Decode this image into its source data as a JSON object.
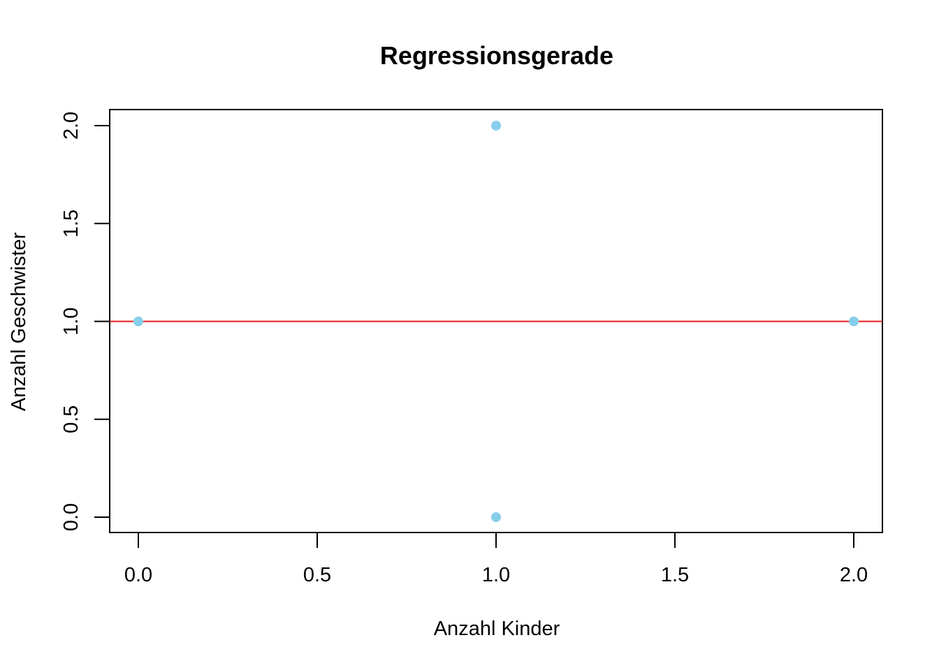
{
  "chart_data": {
    "type": "scatter",
    "title": "Regressionsgerade",
    "xlabel": "Anzahl Kinder",
    "ylabel": "Anzahl Geschwister",
    "xlim": [
      0,
      2
    ],
    "ylim": [
      0,
      2
    ],
    "x_ticks": [
      "0.0",
      "0.5",
      "1.0",
      "1.5",
      "2.0"
    ],
    "y_ticks": [
      "0.0",
      "0.5",
      "1.0",
      "1.5",
      "2.0"
    ],
    "series": [
      {
        "points": [
          {
            "x": 0,
            "y": 1
          },
          {
            "x": 1,
            "y": 2
          },
          {
            "x": 1,
            "y": 0
          },
          {
            "x": 2,
            "y": 1
          }
        ],
        "color": "#87CEEB"
      }
    ],
    "regression_line": {
      "intercept": 1,
      "slope": 0,
      "color": "#E41A1C"
    },
    "grid": false,
    "legend": "none"
  }
}
